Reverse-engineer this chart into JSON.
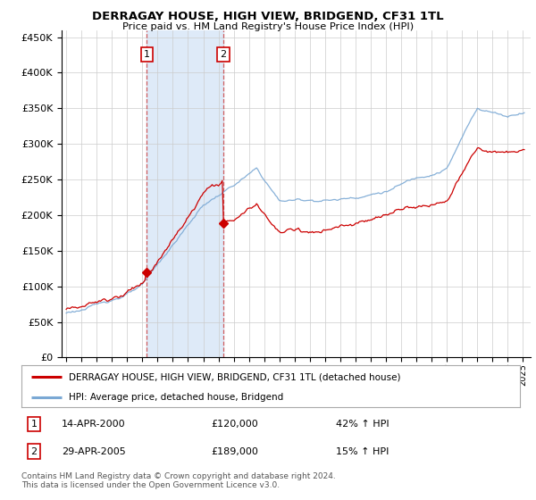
{
  "title": "DERRAGAY HOUSE, HIGH VIEW, BRIDGEND, CF31 1TL",
  "subtitle": "Price paid vs. HM Land Registry's House Price Index (HPI)",
  "ylabel_ticks": [
    0,
    50000,
    100000,
    150000,
    200000,
    250000,
    300000,
    350000,
    400000,
    450000
  ],
  "ylim": [
    0,
    460000
  ],
  "t1_year": 2000.28,
  "t2_year": 2005.32,
  "t1_price": 120000,
  "t2_price": 189000,
  "t1_date": "14-APR-2000",
  "t2_date": "29-APR-2005",
  "t1_pct": "42% ↑ HPI",
  "t2_pct": "15% ↑ HPI",
  "legend_line1": "DERRAGAY HOUSE, HIGH VIEW, BRIDGEND, CF31 1TL (detached house)",
  "legend_line2": "HPI: Average price, detached house, Bridgend",
  "footer": "Contains HM Land Registry data © Crown copyright and database right 2024.\nThis data is licensed under the Open Government Licence v3.0.",
  "red_color": "#cc0000",
  "blue_color": "#7aa8d4",
  "shading_color": "#deeaf8",
  "bg_color": "#ffffff",
  "grid_color": "#cccccc"
}
